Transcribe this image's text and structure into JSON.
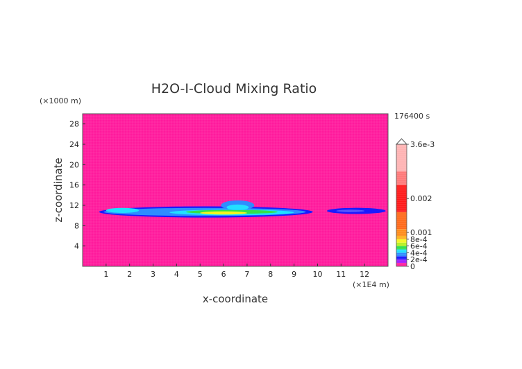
{
  "chart_data": {
    "type": "heatmap",
    "title": "H2O-I-Cloud Mixing Ratio",
    "xlabel": "x-coordinate",
    "ylabel": "z-coordinate",
    "x_unit": "(×1E4 m)",
    "y_unit": "(×1000 m)",
    "time_label": "176400 s",
    "xlim": [
      0,
      13
    ],
    "ylim": [
      0,
      30
    ],
    "x_ticks": [
      1,
      2,
      3,
      4,
      5,
      6,
      7,
      8,
      9,
      10,
      11,
      12
    ],
    "y_ticks": [
      4,
      8,
      12,
      16,
      20,
      24,
      28
    ],
    "background_level": "0",
    "colorbar": {
      "labels": [
        "3.6e-3",
        "0.002",
        "0.001",
        "8e-4",
        "6e-4",
        "4e-4",
        "2e-4",
        "0"
      ],
      "colors": {
        "zero": "#ff1a9c",
        "low_blue": "#1a1aff",
        "mid_blue": "#2f8cff",
        "cyan": "#22e0ff",
        "green": "#33e04a",
        "yellow": "#f5f51e",
        "orange": "#ff8c1a",
        "red": "#ff1a1a",
        "pink_high": "#ffb3b3"
      }
    },
    "features": [
      {
        "name": "main-cloud-band",
        "x_range": [
          0.7,
          9.8
        ],
        "z_center": 10.7,
        "z_thickness": 2.2,
        "peak_value": "6e-4",
        "peak_x": 6.0
      },
      {
        "name": "secondary-cloud-patch",
        "x_range": [
          10.4,
          12.9
        ],
        "z_center": 10.9,
        "z_thickness": 1.2,
        "peak_value": "2e-4"
      }
    ]
  }
}
